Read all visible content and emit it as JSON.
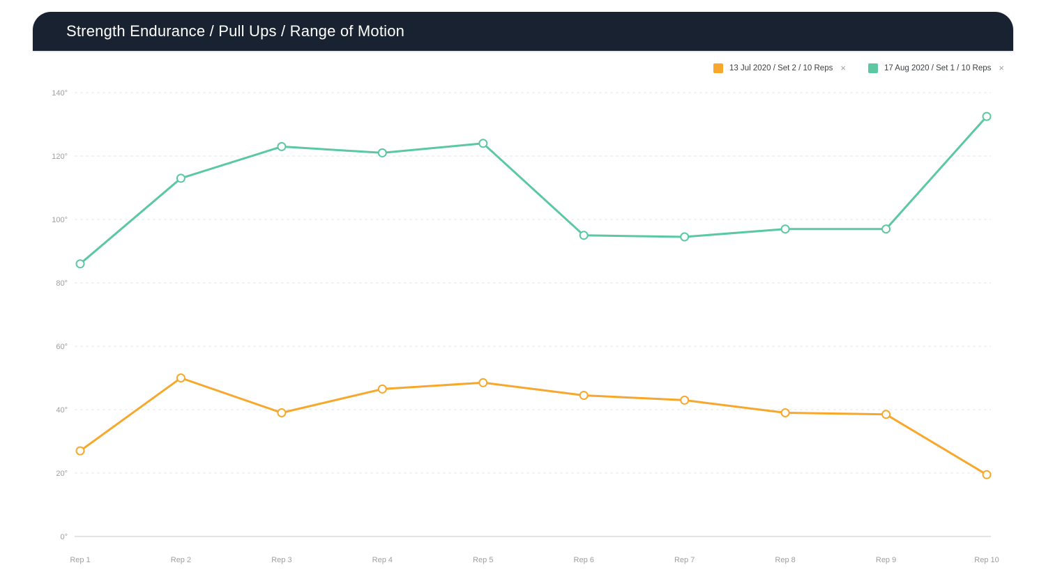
{
  "header": {
    "title": "Strength Endurance / Pull Ups / Range of Motion"
  },
  "legend": {
    "close_icon": "×",
    "position": "top-right"
  },
  "colors": {
    "header_bg": "#192231",
    "background": "#ffffff",
    "axis_line": "#c9c9c9",
    "gridline": "#e4e4e4",
    "tick_label": "#9e9e9e",
    "legend_text": "#3c4043",
    "legend_close": "#9aa0a6",
    "marker_fill": "#ffffff",
    "series_orange": "#F7A82C",
    "series_green": "#5CC8A1"
  },
  "chart_data": {
    "type": "line",
    "title": "Strength Endurance / Pull Ups / Range of Motion",
    "categories": [
      "Rep 1",
      "Rep 2",
      "Rep 3",
      "Rep 4",
      "Rep 5",
      "Rep 6",
      "Rep 7",
      "Rep 8",
      "Rep 9",
      "Rep 10"
    ],
    "series": [
      {
        "name": "13 Jul 2020 / Set 2 / 10 Reps",
        "color": "#F7A82C",
        "values": [
          27,
          50,
          39,
          46.5,
          48.5,
          44.5,
          43,
          39,
          38.5,
          19.5
        ]
      },
      {
        "name": "17 Aug 2020 / Set 1 / 10 Reps",
        "color": "#5CC8A1",
        "values": [
          86,
          113,
          123,
          121,
          124,
          95,
          94.5,
          97,
          97,
          132.5
        ]
      }
    ],
    "xlabel": "",
    "ylabel": "",
    "y_unit": "°",
    "ylim": [
      0,
      140
    ],
    "ytick_step": 20,
    "grid": "horizontal-dashed",
    "legend_position": "top-right",
    "legend_closable": true
  }
}
